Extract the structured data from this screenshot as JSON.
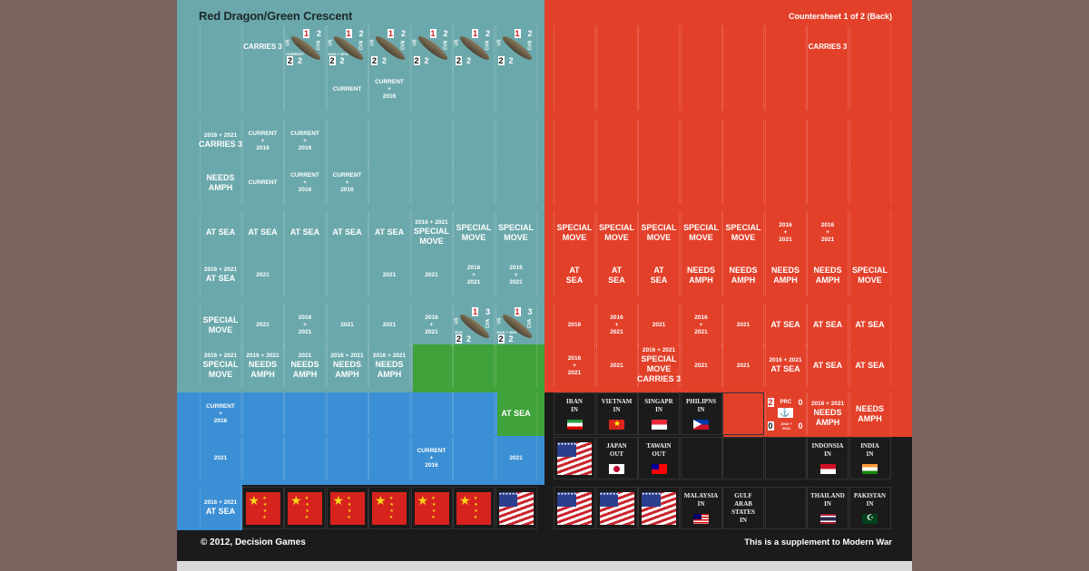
{
  "sheet": {
    "title": "Red Dragon/Green Crescent",
    "subtitle": "Countersheet 1 of 2 (Back)",
    "copyright": "© 2012, Decision Games",
    "supplement": "This is a supplement to Modern War",
    "colors": {
      "teal": "#6ba8ab",
      "red": "#e3402a",
      "blue": "#3b8fd4",
      "green": "#40a23b",
      "black": "#1b1b1b"
    },
    "left_rows": [
      [
        {},
        {
          "lines": [
            "CARRIES 3"
          ]
        },
        {
          "kind": "ship",
          "tl": "1",
          "tr": "2",
          "bl": "2",
          "bc": "2",
          "nation": "US",
          "type": "CVN",
          "note": "CURRENT"
        },
        {
          "kind": "ship",
          "tl": "1",
          "tr": "2",
          "bl": "2",
          "bc": "2",
          "nation": "US",
          "type": "CVN",
          "note": "2016 + 2021"
        },
        {
          "kind": "ship",
          "tl": "1",
          "tr": "2",
          "bl": "2",
          "bc": "2",
          "nation": "US",
          "type": "CVN"
        },
        {
          "kind": "ship",
          "tl": "1",
          "tr": "2",
          "bl": "2",
          "bc": "2",
          "nation": "US",
          "type": "CVN"
        },
        {
          "kind": "ship",
          "tl": "1",
          "tr": "2",
          "bl": "2",
          "bc": "2",
          "nation": "US",
          "type": "CVN"
        },
        {
          "kind": "ship",
          "tl": "1",
          "tr": "2",
          "bl": "2",
          "bc": "2",
          "nation": "US",
          "type": "CVN"
        }
      ],
      [
        {},
        {},
        {},
        {
          "lines": [
            "CURRENT"
          ]
        },
        {
          "lines": [
            "CURRENT",
            "+",
            "2016"
          ]
        },
        {},
        {},
        {}
      ],
      [
        {
          "lines": [
            "2016 + 2021",
            "CARRIES 3"
          ]
        },
        {
          "lines": [
            "CURRENT",
            "+",
            "2016"
          ]
        },
        {
          "lines": [
            "CURRENT",
            "+",
            "2016"
          ]
        },
        {},
        {},
        {},
        {},
        {}
      ],
      [
        {
          "lines": [
            "NEEDS",
            "AMPH"
          ]
        },
        {
          "lines": [
            "CURRENT"
          ]
        },
        {
          "lines": [
            "CURRENT",
            "+",
            "2016"
          ]
        },
        {
          "lines": [
            "CURRENT",
            "+",
            "2016"
          ]
        },
        {},
        {},
        {},
        {}
      ],
      [
        {
          "lines": [
            "AT SEA"
          ]
        },
        {
          "lines": [
            "AT SEA"
          ]
        },
        {
          "lines": [
            "AT SEA"
          ]
        },
        {
          "lines": [
            "AT SEA"
          ]
        },
        {
          "lines": [
            "AT SEA"
          ]
        },
        {
          "lines": [
            "2016 + 2021",
            "SPECIAL",
            "MOVE"
          ]
        },
        {
          "lines": [
            "SPECIAL",
            "MOVE"
          ]
        },
        {
          "lines": [
            "SPECIAL",
            "MOVE"
          ]
        }
      ],
      [
        {
          "lines": [
            "2016 + 2021",
            "AT SEA"
          ]
        },
        {
          "lines": [
            "2021"
          ]
        },
        {},
        {},
        {
          "lines": [
            "2021"
          ]
        },
        {
          "lines": [
            "2021"
          ]
        },
        {
          "lines": [
            "2016",
            "+",
            "2021"
          ]
        },
        {
          "lines": [
            "2016",
            "+",
            "2021"
          ]
        }
      ],
      [
        {
          "lines": [
            "SPECIAL",
            "MOVE"
          ]
        },
        {
          "lines": [
            "2021"
          ]
        },
        {
          "lines": [
            "2016",
            "+",
            "2021"
          ]
        },
        {
          "lines": [
            "2021"
          ]
        },
        {
          "lines": [
            "2021"
          ]
        },
        {
          "lines": [
            "2016",
            "+",
            "2021"
          ]
        },
        {
          "kind": "ship",
          "tl": "1",
          "tr": "3",
          "bl": "2",
          "bc": "2",
          "nation": "US",
          "type": "CVA",
          "note": "2021"
        },
        {
          "kind": "ship",
          "tl": "1",
          "tr": "3",
          "bl": "2",
          "bc": "2",
          "nation": "US",
          "type": "CVA",
          "note": "2016 + 2021"
        }
      ],
      [
        {
          "lines": [
            "2016 + 2021",
            "SPECIAL",
            "MOVE"
          ]
        },
        {
          "lines": [
            "2016 + 2021",
            "NEEDS",
            "AMPH"
          ]
        },
        {
          "lines": [
            "2021",
            "NEEDS",
            "AMPH"
          ]
        },
        {
          "lines": [
            "2016 + 2021",
            "NEEDS",
            "AMPH"
          ]
        },
        {
          "lines": [
            "2016 + 2021",
            "NEEDS",
            "AMPH"
          ]
        },
        {},
        {},
        {}
      ],
      [
        {
          "lines": [
            "CURRENT",
            "+",
            "2016"
          ]
        },
        {},
        {},
        {},
        {},
        {},
        {},
        {
          "lines": [
            "AT SEA"
          ]
        }
      ],
      [
        {
          "lines": [
            "2021"
          ]
        },
        {},
        {},
        {},
        {},
        {
          "lines": [
            "CURRENT",
            "+",
            "2016"
          ]
        },
        {},
        {
          "lines": [
            "2021"
          ]
        }
      ],
      [
        {
          "lines": [
            "2016 + 2021",
            "AT SEA"
          ]
        },
        {
          "kind": "flag",
          "flag": "china"
        },
        {
          "kind": "flag",
          "flag": "china"
        },
        {
          "kind": "flag",
          "flag": "china"
        },
        {
          "kind": "flag",
          "flag": "china"
        },
        {
          "kind": "flag",
          "flag": "china"
        },
        {
          "kind": "flag",
          "flag": "china"
        },
        {
          "kind": "flag",
          "flag": "usa"
        }
      ]
    ],
    "right_rows": [
      [
        {},
        {},
        {},
        {},
        {},
        {},
        {
          "lines": [
            "CARRIES 3"
          ]
        },
        {}
      ],
      [
        {},
        {},
        {},
        {},
        {},
        {},
        {},
        {}
      ],
      [
        {},
        {},
        {},
        {},
        {},
        {},
        {},
        {}
      ],
      [
        {},
        {},
        {},
        {},
        {},
        {},
        {},
        {}
      ],
      [
        {
          "lines": [
            "SPECIAL",
            "MOVE"
          ]
        },
        {
          "lines": [
            "SPECIAL",
            "MOVE"
          ]
        },
        {
          "lines": [
            "SPECIAL",
            "MOVE"
          ]
        },
        {
          "lines": [
            "SPECIAL",
            "MOVE"
          ]
        },
        {
          "lines": [
            "SPECIAL",
            "MOVE"
          ]
        },
        {
          "lines": [
            "2016",
            "+",
            "2021"
          ]
        },
        {
          "lines": [
            "2016",
            "+",
            "2021"
          ]
        },
        {}
      ],
      [
        {
          "lines": [
            "AT",
            "SEA"
          ]
        },
        {
          "lines": [
            "AT",
            "SEA"
          ]
        },
        {
          "lines": [
            "AT",
            "SEA"
          ]
        },
        {
          "lines": [
            "NEEDS",
            "AMPH"
          ]
        },
        {
          "lines": [
            "NEEDS",
            "AMPH"
          ]
        },
        {
          "lines": [
            "NEEDS",
            "AMPH"
          ]
        },
        {
          "lines": [
            "NEEDS",
            "AMPH"
          ]
        },
        {
          "lines": [
            "SPECIAL",
            "MOVE"
          ]
        }
      ],
      [
        {
          "lines": [
            "2016"
          ]
        },
        {
          "lines": [
            "2016",
            "+",
            "2021"
          ]
        },
        {
          "lines": [
            "2021"
          ]
        },
        {
          "lines": [
            "2016",
            "+",
            "2021"
          ]
        },
        {
          "lines": [
            "2021"
          ]
        },
        {
          "lines": [
            "AT SEA"
          ]
        },
        {
          "lines": [
            "AT SEA"
          ]
        },
        {
          "lines": [
            "AT SEA"
          ]
        }
      ],
      [
        {
          "lines": [
            "2016",
            "+",
            "2021"
          ]
        },
        {
          "lines": [
            "2021"
          ]
        },
        {
          "lines": [
            "2016 + 2021",
            "SPECIAL",
            "MOVE",
            "CARRIES 3"
          ]
        },
        {
          "lines": [
            "2021"
          ]
        },
        {
          "lines": [
            "2021"
          ]
        },
        {
          "lines": [
            "2016 + 2021",
            "AT SEA"
          ]
        },
        {
          "lines": [
            "AT SEA"
          ]
        },
        {
          "lines": [
            "AT SEA"
          ]
        }
      ],
      [
        {
          "kind": "country",
          "lines": [
            "IRAN",
            "IN"
          ],
          "flag": "iran"
        },
        {
          "kind": "country",
          "lines": [
            "VIETNAM",
            "IN"
          ],
          "flag": "vietnam"
        },
        {
          "kind": "country",
          "lines": [
            "SINGAPR",
            "IN"
          ],
          "flag": "singapore"
        },
        {
          "kind": "country",
          "lines": [
            "PHILIPNS",
            "IN"
          ],
          "flag": "philippines"
        },
        {
          "kind": "dark"
        },
        {
          "kind": "prc",
          "tl": "2",
          "label": "PRC",
          "tr": "0",
          "bl": "0",
          "note": "2016 + 2021",
          "br": "0"
        },
        {
          "lines": [
            "2016 + 2021",
            "NEEDS",
            "AMPH"
          ]
        },
        {
          "lines": [
            "NEEDS",
            "AMPH"
          ]
        }
      ],
      [
        {
          "kind": "flag",
          "flag": "usa"
        },
        {
          "kind": "country",
          "lines": [
            "JAPAN",
            "OUT"
          ],
          "flag": "japan"
        },
        {
          "kind": "country",
          "lines": [
            "TAWAIN",
            "OUT"
          ],
          "flag": "taiwan"
        },
        {
          "kind": "dark"
        },
        {
          "kind": "dark"
        },
        {
          "kind": "dark"
        },
        {
          "kind": "country",
          "lines": [
            "INDONSIA",
            "IN"
          ],
          "flag": "indonesia"
        },
        {
          "kind": "country",
          "lines": [
            "INDIA",
            "IN"
          ],
          "flag": "india"
        }
      ],
      [
        {
          "kind": "flag",
          "flag": "usa"
        },
        {
          "kind": "flag",
          "flag": "usa"
        },
        {
          "kind": "flag",
          "flag": "usa"
        },
        {
          "kind": "country",
          "lines": [
            "MALAYSIA",
            "IN"
          ],
          "flag": "malaysia"
        },
        {
          "kind": "country",
          "lines": [
            "GULF",
            "ARAB",
            "STATES",
            "IN"
          ]
        },
        {
          "kind": "dark"
        },
        {
          "kind": "country",
          "lines": [
            "THAILAND",
            "IN"
          ],
          "flag": "thailand"
        },
        {
          "kind": "country",
          "lines": [
            "PAKISTAN",
            "IN"
          ],
          "flag": "pakistan"
        }
      ]
    ]
  }
}
